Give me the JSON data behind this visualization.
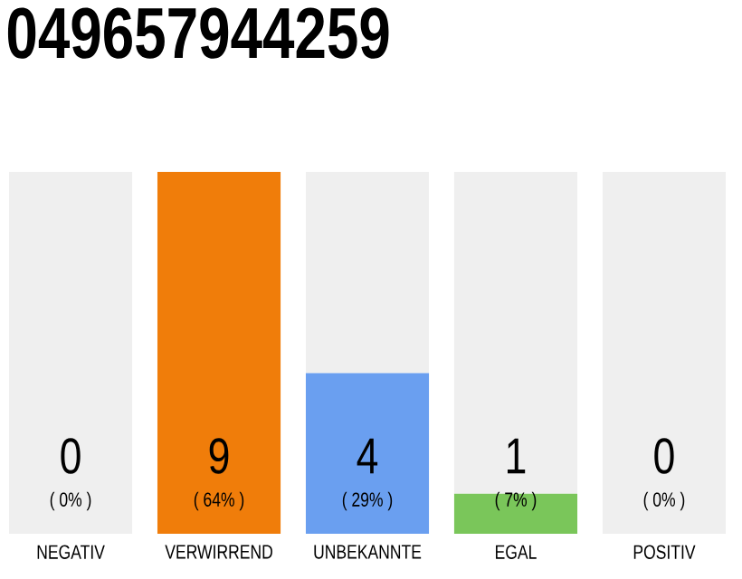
{
  "chart_data": {
    "type": "bar",
    "title": "049657944259",
    "stacked": true,
    "categories": [
      "NEGATIV",
      "VERWIRREND",
      "UNBEKANNTE",
      "EGAL",
      "POSITIV"
    ],
    "series": [
      {
        "colors": [
          "#efefef",
          "#f07d0a",
          "#6a9ff0",
          "#7ac65a",
          "#efefef"
        ],
        "values": [
          0,
          9,
          4,
          1,
          0
        ],
        "value_labels": [
          null,
          "9",
          "4",
          "1",
          null
        ]
      },
      {
        "color": "#efefef",
        "values": [
          9,
          0,
          5,
          8,
          9
        ]
      }
    ],
    "annotations": [
      "0",
      "( 0% )",
      "( 64% )",
      "( 29% )",
      "( 7% )",
      "0",
      "( 0% )"
    ]
  }
}
